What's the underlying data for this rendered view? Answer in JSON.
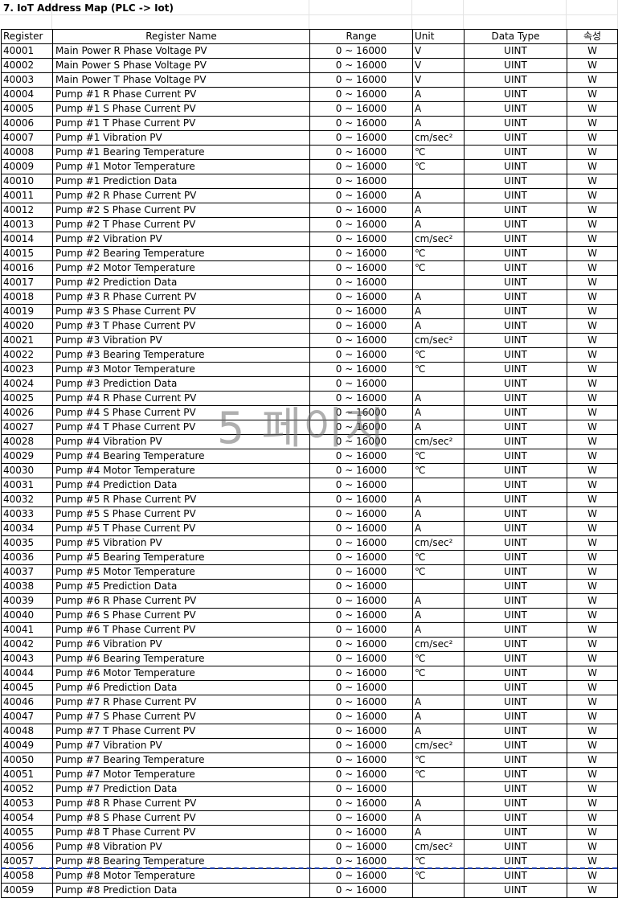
{
  "title": "7. IoT Address Map (PLC -> Iot)",
  "headers": {
    "register": "Register",
    "name": "Register Name",
    "range": "Range",
    "unit": "Unit",
    "data_type": "Data Type",
    "attribute": "속성"
  },
  "watermark": "5 페이지",
  "rows": [
    [
      "40001",
      "Main Power R Phase Voltage PV",
      "0 ~ 16000",
      "V",
      "UINT",
      "W"
    ],
    [
      "40002",
      "Main Power S Phase Voltage PV",
      "0 ~ 16000",
      "V",
      "UINT",
      "W"
    ],
    [
      "40003",
      "Main Power T Phase Voltage PV",
      "0 ~ 16000",
      "V",
      "UINT",
      "W"
    ],
    [
      "40004",
      "Pump #1 R Phase Current PV",
      "0 ~ 16000",
      "A",
      "UINT",
      "W"
    ],
    [
      "40005",
      "Pump #1 S Phase Current PV",
      "0 ~ 16000",
      "A",
      "UINT",
      "W"
    ],
    [
      "40006",
      "Pump #1 T Phase Current PV",
      "0 ~ 16000",
      "A",
      "UINT",
      "W"
    ],
    [
      "40007",
      "Pump #1 Vibration PV",
      "0 ~ 16000",
      "cm/sec²",
      "UINT",
      "W"
    ],
    [
      "40008",
      "Pump #1 Bearing Temperature",
      "0 ~ 16000",
      "℃",
      "UINT",
      "W"
    ],
    [
      "40009",
      "Pump #1 Motor Temperature",
      "0 ~ 16000",
      "℃",
      "UINT",
      "W"
    ],
    [
      "40010",
      "Pump #1 Prediction Data",
      "0 ~ 16000",
      "",
      "UINT",
      "W"
    ],
    [
      "40011",
      "Pump #2 R Phase Current PV",
      "0 ~ 16000",
      "A",
      "UINT",
      "W"
    ],
    [
      "40012",
      "Pump #2 S Phase Current PV",
      "0 ~ 16000",
      "A",
      "UINT",
      "W"
    ],
    [
      "40013",
      "Pump #2 T Phase Current PV",
      "0 ~ 16000",
      "A",
      "UINT",
      "W"
    ],
    [
      "40014",
      "Pump #2 Vibration PV",
      "0 ~ 16000",
      "cm/sec²",
      "UINT",
      "W"
    ],
    [
      "40015",
      "Pump #2 Bearing Temperature",
      "0 ~ 16000",
      "℃",
      "UINT",
      "W"
    ],
    [
      "40016",
      "Pump #2 Motor Temperature",
      "0 ~ 16000",
      "℃",
      "UINT",
      "W"
    ],
    [
      "40017",
      "Pump #2 Prediction Data",
      "0 ~ 16000",
      "",
      "UINT",
      "W"
    ],
    [
      "40018",
      "Pump #3 R Phase Current PV",
      "0 ~ 16000",
      "A",
      "UINT",
      "W"
    ],
    [
      "40019",
      "Pump #3 S Phase Current PV",
      "0 ~ 16000",
      "A",
      "UINT",
      "W"
    ],
    [
      "40020",
      "Pump #3 T Phase Current PV",
      "0 ~ 16000",
      "A",
      "UINT",
      "W"
    ],
    [
      "40021",
      "Pump #3 Vibration PV",
      "0 ~ 16000",
      "cm/sec²",
      "UINT",
      "W"
    ],
    [
      "40022",
      "Pump #3 Bearing Temperature",
      "0 ~ 16000",
      "℃",
      "UINT",
      "W"
    ],
    [
      "40023",
      "Pump #3 Motor Temperature",
      "0 ~ 16000",
      "℃",
      "UINT",
      "W"
    ],
    [
      "40024",
      "Pump #3 Prediction Data",
      "0 ~ 16000",
      "",
      "UINT",
      "W"
    ],
    [
      "40025",
      "Pump #4 R Phase Current PV",
      "0 ~ 16000",
      "A",
      "UINT",
      "W"
    ],
    [
      "40026",
      "Pump #4 S Phase Current PV",
      "0 ~ 16000",
      "A",
      "UINT",
      "W"
    ],
    [
      "40027",
      "Pump #4 T Phase Current PV",
      "0 ~ 16000",
      "A",
      "UINT",
      "W"
    ],
    [
      "40028",
      "Pump #4 Vibration PV",
      "0 ~ 16000",
      "cm/sec²",
      "UINT",
      "W"
    ],
    [
      "40029",
      "Pump #4 Bearing Temperature",
      "0 ~ 16000",
      "℃",
      "UINT",
      "W"
    ],
    [
      "40030",
      "Pump #4 Motor Temperature",
      "0 ~ 16000",
      "℃",
      "UINT",
      "W"
    ],
    [
      "40031",
      "Pump #4 Prediction Data",
      "0 ~ 16000",
      "",
      "UINT",
      "W"
    ],
    [
      "40032",
      "Pump #5 R Phase Current PV",
      "0 ~ 16000",
      "A",
      "UINT",
      "W"
    ],
    [
      "40033",
      "Pump #5 S Phase Current PV",
      "0 ~ 16000",
      "A",
      "UINT",
      "W"
    ],
    [
      "40034",
      "Pump #5 T Phase Current PV",
      "0 ~ 16000",
      "A",
      "UINT",
      "W"
    ],
    [
      "40035",
      "Pump #5 Vibration PV",
      "0 ~ 16000",
      "cm/sec²",
      "UINT",
      "W"
    ],
    [
      "40036",
      "Pump #5 Bearing Temperature",
      "0 ~ 16000",
      "℃",
      "UINT",
      "W"
    ],
    [
      "40037",
      "Pump #5 Motor Temperature",
      "0 ~ 16000",
      "℃",
      "UINT",
      "W"
    ],
    [
      "40038",
      "Pump #5 Prediction Data",
      "0 ~ 16000",
      "",
      "UINT",
      "W"
    ],
    [
      "40039",
      "Pump #6 R Phase Current PV",
      "0 ~ 16000",
      "A",
      "UINT",
      "W"
    ],
    [
      "40040",
      "Pump #6 S Phase Current PV",
      "0 ~ 16000",
      "A",
      "UINT",
      "W"
    ],
    [
      "40041",
      "Pump #6 T Phase Current PV",
      "0 ~ 16000",
      "A",
      "UINT",
      "W"
    ],
    [
      "40042",
      "Pump #6 Vibration PV",
      "0 ~ 16000",
      "cm/sec²",
      "UINT",
      "W"
    ],
    [
      "40043",
      "Pump #6 Bearing Temperature",
      "0 ~ 16000",
      "℃",
      "UINT",
      "W"
    ],
    [
      "40044",
      "Pump #6 Motor Temperature",
      "0 ~ 16000",
      "℃",
      "UINT",
      "W"
    ],
    [
      "40045",
      "Pump #6 Prediction Data",
      "0 ~ 16000",
      "",
      "UINT",
      "W"
    ],
    [
      "40046",
      "Pump #7 R Phase Current PV",
      "0 ~ 16000",
      "A",
      "UINT",
      "W"
    ],
    [
      "40047",
      "Pump #7 S Phase Current PV",
      "0 ~ 16000",
      "A",
      "UINT",
      "W"
    ],
    [
      "40048",
      "Pump #7 T Phase Current PV",
      "0 ~ 16000",
      "A",
      "UINT",
      "W"
    ],
    [
      "40049",
      "Pump #7 Vibration PV",
      "0 ~ 16000",
      "cm/sec²",
      "UINT",
      "W"
    ],
    [
      "40050",
      "Pump #7 Bearing Temperature",
      "0 ~ 16000",
      "℃",
      "UINT",
      "W"
    ],
    [
      "40051",
      "Pump #7 Motor Temperature",
      "0 ~ 16000",
      "℃",
      "UINT",
      "W"
    ],
    [
      "40052",
      "Pump #7 Prediction Data",
      "0 ~ 16000",
      "",
      "UINT",
      "W"
    ],
    [
      "40053",
      "Pump #8 R Phase Current PV",
      "0 ~ 16000",
      "A",
      "UINT",
      "W"
    ],
    [
      "40054",
      "Pump #8 S Phase Current PV",
      "0 ~ 16000",
      "A",
      "UINT",
      "W"
    ],
    [
      "40055",
      "Pump #8 T Phase Current PV",
      "0 ~ 16000",
      "A",
      "UINT",
      "W"
    ],
    [
      "40056",
      "Pump #8 Vibration PV",
      "0 ~ 16000",
      "cm/sec²",
      "UINT",
      "W"
    ],
    [
      "40057",
      "Pump #8 Bearing Temperature",
      "0 ~ 16000",
      "℃",
      "UINT",
      "W"
    ],
    [
      "40058",
      "Pump #8 Motor Temperature",
      "0 ~ 16000",
      "℃",
      "UINT",
      "W"
    ],
    [
      "40059",
      "Pump #8 Prediction Data",
      "0 ~ 16000",
      "",
      "UINT",
      "W"
    ]
  ]
}
